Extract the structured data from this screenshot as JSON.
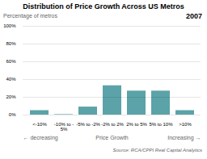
{
  "chart_data": {
    "type": "bar",
    "title": "Distribution of Price Growth Across US Metros",
    "subtitle": "2007",
    "y_label": "Percentage of metros",
    "source": "Source: RCA/CPPI Real Capital Analytics",
    "annotations": [
      "← decreasing",
      "Price Growth",
      "Increasing →"
    ],
    "categories": [
      "<-10%",
      "-10% to -5%",
      "-5% to -2%",
      "-2% to 2%",
      "2% to 5%",
      "5% to 10%",
      ">10%"
    ],
    "values": [
      5,
      0.5,
      9,
      33,
      27,
      27,
      5
    ],
    "color": "#5ba3a8",
    "ylim": [
      0,
      100
    ],
    "yticks": [
      {
        "value": 0,
        "label": "0%"
      },
      {
        "value": 20,
        "label": "20%"
      },
      {
        "value": 40,
        "label": "40%"
      },
      {
        "value": 60,
        "label": "60%"
      },
      {
        "value": 80,
        "label": "80%"
      },
      {
        "value": 100,
        "label": "100%"
      }
    ],
    "grid": true
  }
}
